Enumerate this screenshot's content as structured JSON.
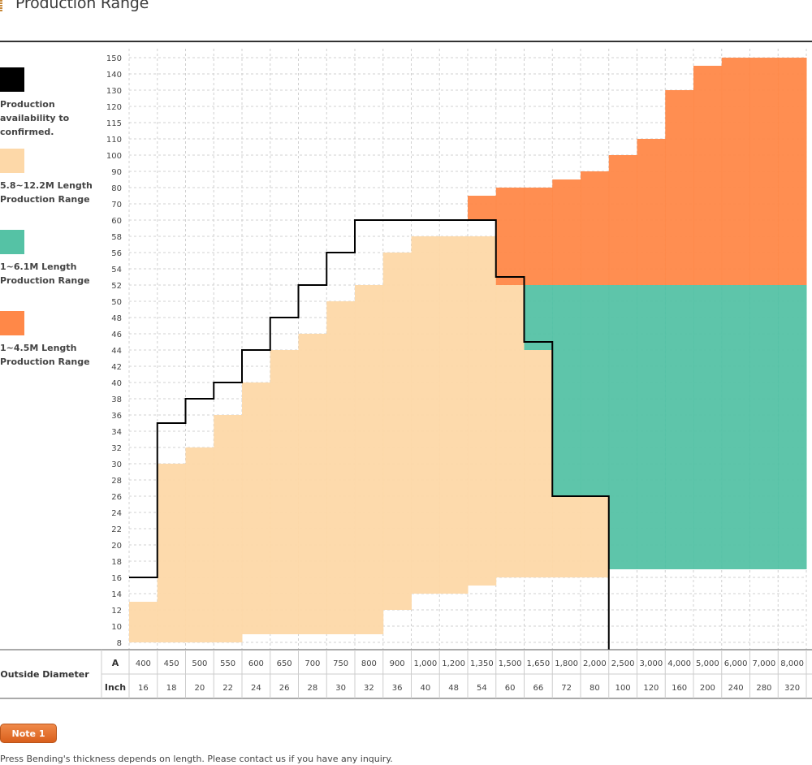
{
  "title": "Production Range",
  "legend": [
    {
      "label": "Production availability to confirmed.",
      "color": "#000000"
    },
    {
      "label": "5.8~12.2M Length Production Range",
      "color": "#fdd8a8"
    },
    {
      "label": "1~6.1M Length Production Range",
      "color": "#55c2a5"
    },
    {
      "label": "1~4.5M Length Production Range",
      "color": "#ff8848"
    }
  ],
  "chart_data": {
    "type": "bar",
    "title": "Production Range",
    "xlabel": "Outside Diameter",
    "ylabel": "",
    "y_ticks": [
      8,
      10,
      12,
      14,
      16,
      18,
      20,
      22,
      24,
      26,
      28,
      30,
      32,
      34,
      36,
      38,
      40,
      42,
      44,
      46,
      48,
      50,
      52,
      54,
      56,
      58,
      60,
      70,
      80,
      90,
      100,
      110,
      115,
      120,
      130,
      140,
      150
    ],
    "categories_A": [
      "400",
      "450",
      "500",
      "550",
      "600",
      "650",
      "700",
      "750",
      "800",
      "900",
      "1,000",
      "1,200",
      "1,350",
      "1,500",
      "1,650",
      "1,800",
      "2,000",
      "2,500",
      "3,000",
      "4,000",
      "5,000",
      "6,000",
      "7,000",
      "8,000"
    ],
    "categories_inch": [
      "16",
      "18",
      "20",
      "22",
      "24",
      "26",
      "28",
      "30",
      "32",
      "36",
      "40",
      "48",
      "54",
      "60",
      "66",
      "72",
      "80",
      "100",
      "120",
      "160",
      "200",
      "240",
      "280",
      "320"
    ],
    "row_labels": {
      "a": "A",
      "inch": "Inch"
    },
    "series": [
      {
        "name": "5.8~12.2M Length Production Range",
        "color": "#fdd8a8",
        "low": [
          8,
          8,
          8,
          8,
          9,
          9,
          9,
          9,
          9,
          12,
          14,
          14,
          15,
          16,
          16,
          16,
          16,
          null,
          null,
          null,
          null,
          null,
          null,
          null
        ],
        "high": [
          13,
          30,
          32,
          36,
          40,
          44,
          46,
          50,
          52,
          56,
          58,
          58,
          58,
          52,
          44,
          26,
          26,
          null,
          null,
          null,
          null,
          null,
          null,
          null
        ]
      },
      {
        "name": "1~6.1M Length Production Range",
        "color": "#55c2a5",
        "low": [
          null,
          null,
          null,
          null,
          null,
          null,
          null,
          null,
          null,
          null,
          null,
          null,
          null,
          null,
          null,
          null,
          null,
          17,
          17,
          17,
          17,
          17,
          17,
          17
        ],
        "high": [
          null,
          null,
          null,
          null,
          null,
          null,
          null,
          null,
          null,
          null,
          null,
          null,
          null,
          null,
          null,
          null,
          null,
          52,
          52,
          52,
          52,
          52,
          52,
          52
        ],
        "extra_low": [
          null,
          null,
          null,
          null,
          null,
          null,
          null,
          null,
          null,
          null,
          null,
          null,
          null,
          null,
          44,
          17,
          17,
          null,
          null,
          null,
          null,
          null,
          null,
          null
        ]
      },
      {
        "name": "1~4.5M Length Production Range",
        "color": "#ff8848",
        "low": [
          null,
          null,
          null,
          null,
          null,
          null,
          null,
          null,
          null,
          null,
          null,
          null,
          60,
          52,
          52,
          52,
          52,
          52,
          52,
          52,
          52,
          52,
          52,
          52
        ],
        "high": [
          null,
          null,
          null,
          null,
          null,
          null,
          null,
          null,
          null,
          null,
          null,
          null,
          75,
          80,
          80,
          85,
          90,
          100,
          110,
          130,
          145,
          150,
          150,
          150
        ]
      }
    ],
    "boundary_line": {
      "name": "Production availability to confirmed.",
      "color": "#000000",
      "points": [
        [
          0,
          16
        ],
        [
          1,
          16
        ],
        [
          1,
          35
        ],
        [
          2,
          35
        ],
        [
          2,
          38
        ],
        [
          3,
          38
        ],
        [
          3,
          40
        ],
        [
          4,
          40
        ],
        [
          4,
          44
        ],
        [
          5,
          44
        ],
        [
          5,
          48
        ],
        [
          6,
          48
        ],
        [
          6,
          52
        ],
        [
          7,
          52
        ],
        [
          7,
          56
        ],
        [
          8,
          56
        ],
        [
          8,
          60
        ],
        [
          13,
          60
        ],
        [
          13,
          53
        ],
        [
          14,
          53
        ],
        [
          14,
          45
        ],
        [
          15,
          45
        ],
        [
          15,
          26
        ],
        [
          17,
          26
        ],
        [
          17,
          7
        ]
      ]
    }
  },
  "note": {
    "button_label": "Note 1",
    "text": "Press Bending's thickness depends on length. Please contact us if you have any inquiry."
  }
}
